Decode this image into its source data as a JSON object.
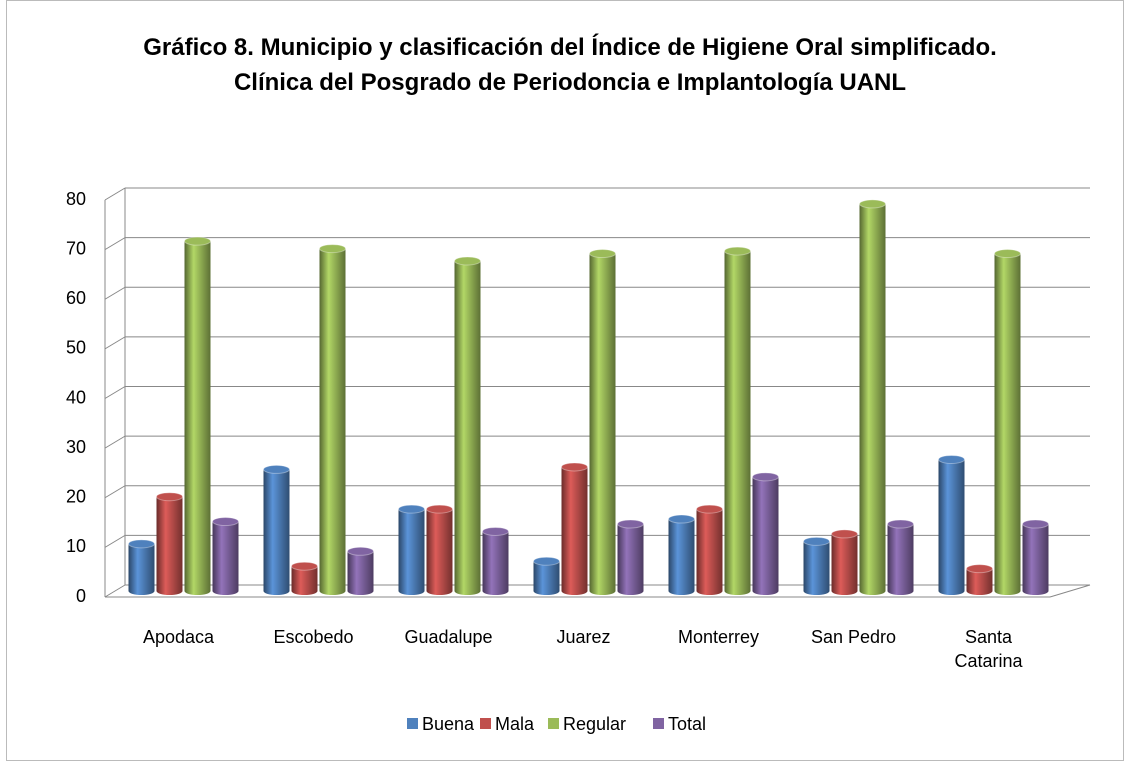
{
  "chart_data": {
    "type": "bar",
    "title": "Gráfico 8. Municipio y clasificación del Índice de Higiene Oral simplificado. Clínica del Posgrado de Periodoncia e Implantología UANL",
    "categories": [
      "Apodaca",
      "Escobedo",
      "Guadalupe",
      "Juarez",
      "Monterrey",
      "San Pedro",
      "Santa Catarina"
    ],
    "series": [
      {
        "name": "Buena",
        "color": "#4f81bd",
        "values": [
          9.5,
          24.5,
          16.5,
          6,
          14.5,
          10,
          26.5
        ]
      },
      {
        "name": "Mala",
        "color": "#c0504d",
        "values": [
          19,
          5,
          16.5,
          25,
          16.5,
          11.5,
          4.5
        ]
      },
      {
        "name": "Regular",
        "color": "#9bbb59",
        "values": [
          70.5,
          69,
          66.5,
          68,
          68.5,
          78,
          68
        ]
      },
      {
        "name": "Total",
        "color": "#8064a2",
        "values": [
          14,
          8,
          12,
          13.5,
          23,
          13.5,
          13.5
        ]
      }
    ],
    "ylim": [
      0,
      80
    ],
    "yticks": [
      0,
      10,
      20,
      30,
      40,
      50,
      60,
      70,
      80
    ],
    "grid": true,
    "legend": "bottom"
  }
}
